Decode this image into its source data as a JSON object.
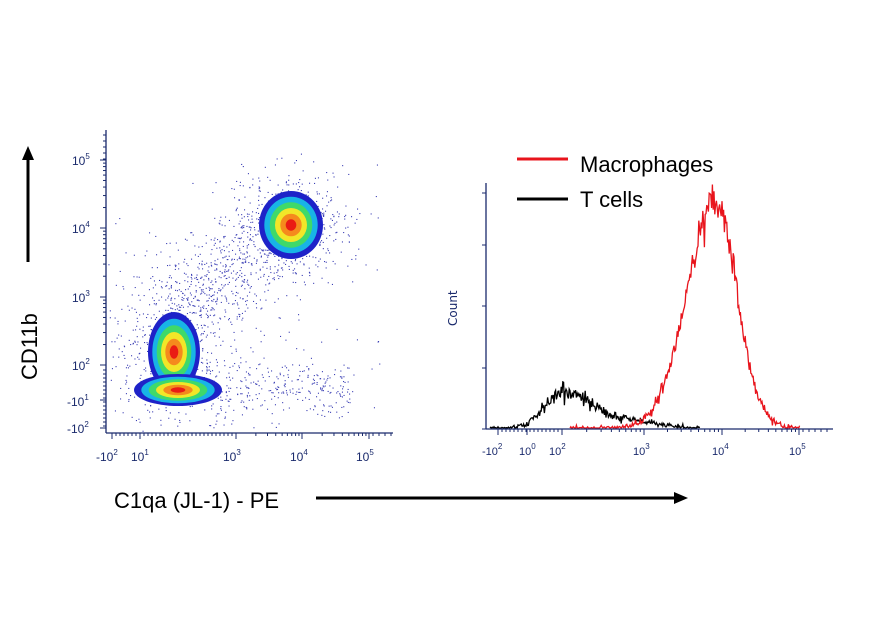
{
  "chart_data": [
    {
      "type": "scatter",
      "subtype": "density-dot-plot",
      "xlabel": "C1qa (JL-1) - PE",
      "ylabel": "CD11b",
      "x_scale": "biexponential",
      "y_scale": "biexponential",
      "x_ticks": [
        {
          "base": "-10",
          "exp": "2"
        },
        {
          "base": "10",
          "exp": "1"
        },
        {
          "base": "10",
          "exp": "3"
        },
        {
          "base": "10",
          "exp": "4"
        },
        {
          "base": "10",
          "exp": "5"
        }
      ],
      "y_ticks": [
        {
          "base": "10",
          "exp": "5"
        },
        {
          "base": "10",
          "exp": "4"
        },
        {
          "base": "10",
          "exp": "3"
        },
        {
          "base": "10",
          "exp": "2"
        },
        {
          "base": "-10",
          "exp": "1"
        },
        {
          "base": "-10",
          "exp": "2"
        }
      ],
      "populations": [
        {
          "name": "low C1qa / low CD11b",
          "x_center": 50,
          "y_center": 10
        },
        {
          "name": "low C1qa / CD11b intermediate",
          "x_center": 60,
          "y_center": 150
        },
        {
          "name": "high C1qa / high CD11b",
          "x_center": 8000,
          "y_center": 15000
        }
      ],
      "density_colors": [
        "#1e22c8",
        "#18b4e6",
        "#3fd96a",
        "#f2e628",
        "#f58a1d",
        "#ea1b14"
      ]
    },
    {
      "type": "line",
      "subtype": "histogram",
      "ylabel": "Count",
      "x_scale": "biexponential",
      "x_ticks": [
        {
          "base": "-10",
          "exp": "2"
        },
        {
          "base": "10",
          "exp": "0"
        },
        {
          "base": "10",
          "exp": "2"
        },
        {
          "base": "10",
          "exp": "3"
        },
        {
          "base": "10",
          "exp": "4"
        },
        {
          "base": "10",
          "exp": "5"
        }
      ],
      "series": [
        {
          "name": "Macrophages",
          "color": "#e8141c",
          "peak_x": 8000,
          "shape": "unimodal"
        },
        {
          "name": "T cells",
          "color": "#000000",
          "peak_x": 100,
          "shape": "unimodal"
        }
      ],
      "legend": "top"
    }
  ]
}
